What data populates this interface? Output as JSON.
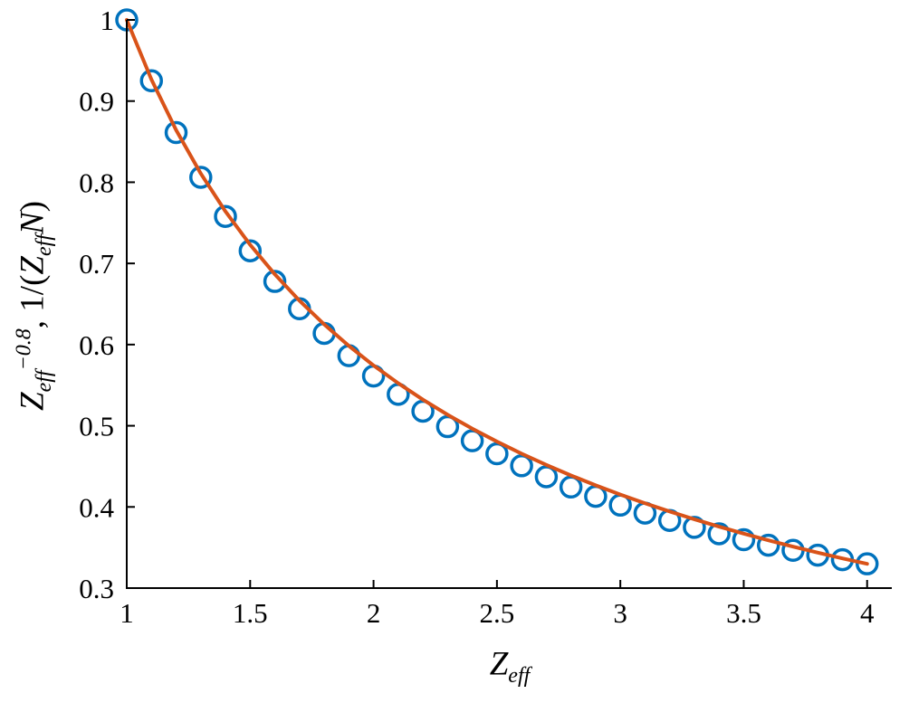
{
  "figure": {
    "background": "#ffffff",
    "axis_color": "#000000",
    "tick_label_color": "#000000"
  },
  "chart_data": {
    "type": "line",
    "title": "",
    "description": "Power-law decay curve Zeff^-0.8 (solid orange line) with open blue circle markers for 1/(Zeff*N) versus effective charge Zeff",
    "xlabel": {
      "z": "Z",
      "sub": "eff"
    },
    "ylabel": {
      "z1": "Z",
      "sub1": "eff",
      "sup1": "−0.8",
      "mid": ", 1/(",
      "z2": "Z",
      "sub2": "eff",
      "n": "N",
      "end": ")"
    },
    "xlim": [
      1,
      4.1
    ],
    "ylim": [
      0.3,
      1.0
    ],
    "grid": false,
    "legend": "none",
    "x_ticks": {
      "values": [
        1,
        1.5,
        2,
        2.5,
        3,
        3.5,
        4
      ],
      "labels": [
        "1",
        "1.5",
        "2",
        "2.5",
        "3",
        "3.5",
        "4"
      ]
    },
    "y_ticks": {
      "values": [
        0.3,
        0.4,
        0.5,
        0.6,
        0.7,
        0.8,
        0.9,
        1.0
      ],
      "labels": [
        "0.3",
        "0.4",
        "0.5",
        "0.6",
        "0.7",
        "0.8",
        "0.9",
        "1"
      ]
    },
    "series": [
      {
        "name": "1/(Zeff N) markers",
        "plot_type": "scatter",
        "marker": "open-circle",
        "color": "#0072BD",
        "marker_radius": 11,
        "marker_stroke_width": 3.5,
        "x": [
          1.0,
          1.1,
          1.2,
          1.3,
          1.4,
          1.5,
          1.6,
          1.7,
          1.8,
          1.9,
          2.0,
          2.1,
          2.2,
          2.3,
          2.4,
          2.5,
          2.6,
          2.7,
          2.8,
          2.9,
          3.0,
          3.1,
          3.2,
          3.3,
          3.4,
          3.5,
          3.6,
          3.7,
          3.8,
          3.9,
          4.0
        ],
        "y": [
          1.0,
          0.925,
          0.8612,
          0.8061,
          0.7579,
          0.7155,
          0.6778,
          0.6441,
          0.6138,
          0.5863,
          0.5613,
          0.5387,
          0.5179,
          0.4989,
          0.4815,
          0.4655,
          0.4507,
          0.4371,
          0.4245,
          0.413,
          0.4022,
          0.3924,
          0.3833,
          0.3748,
          0.3669,
          0.3596,
          0.3528,
          0.3465,
          0.3406,
          0.335,
          0.3299
        ]
      },
      {
        "name": "Zeff^-0.8 curve",
        "plot_type": "line",
        "color": "#D95319",
        "line_width": 4,
        "x": [
          1.0,
          1.1,
          1.2,
          1.3,
          1.4,
          1.5,
          1.6,
          1.7,
          1.8,
          1.9,
          2.0,
          2.1,
          2.2,
          2.3,
          2.4,
          2.5,
          2.6,
          2.7,
          2.8,
          2.9,
          3.0,
          3.1,
          3.2,
          3.3,
          3.4,
          3.5,
          3.6,
          3.7,
          3.8,
          3.9,
          4.0
        ],
        "y": [
          1.0,
          0.9266,
          0.8643,
          0.8107,
          0.764,
          0.723,
          0.6866,
          0.6541,
          0.6249,
          0.5984,
          0.5743,
          0.5524,
          0.5322,
          0.5136,
          0.4964,
          0.4805,
          0.4656,
          0.4518,
          0.4388,
          0.4267,
          0.4152,
          0.4045,
          0.3944,
          0.3848,
          0.3757,
          0.3671,
          0.3589,
          0.3511,
          0.3437,
          0.3366,
          0.3299
        ]
      }
    ]
  }
}
